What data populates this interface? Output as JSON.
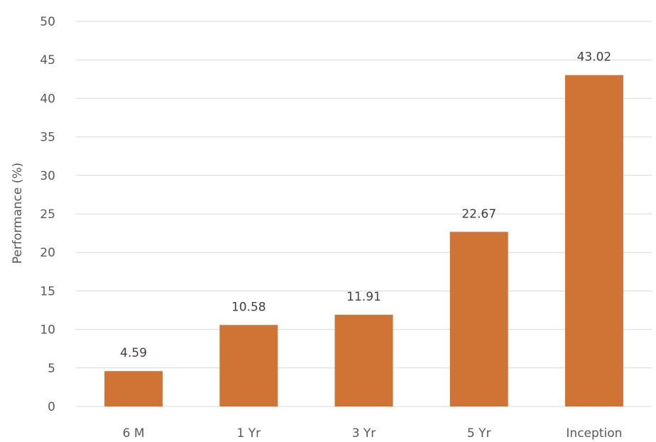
{
  "chart_data": {
    "type": "bar",
    "title": "",
    "xlabel": "",
    "ylabel": "Performance (%)",
    "categories": [
      "6 M",
      "1 Yr",
      "3 Yr",
      "5 Yr",
      "Inception"
    ],
    "values": [
      4.59,
      10.58,
      11.91,
      22.67,
      43.02
    ],
    "data_labels": [
      "4.59",
      "10.58",
      "11.91",
      "22.67",
      "43.02"
    ],
    "ylim": [
      0,
      50
    ],
    "yticks": [
      0,
      5,
      10,
      15,
      20,
      25,
      30,
      35,
      40,
      45,
      50
    ],
    "grid": "horizontal",
    "legend": "none",
    "colors": {
      "bar": "#cf7434",
      "grid": "#d9d9d9",
      "text": "#595959"
    }
  }
}
